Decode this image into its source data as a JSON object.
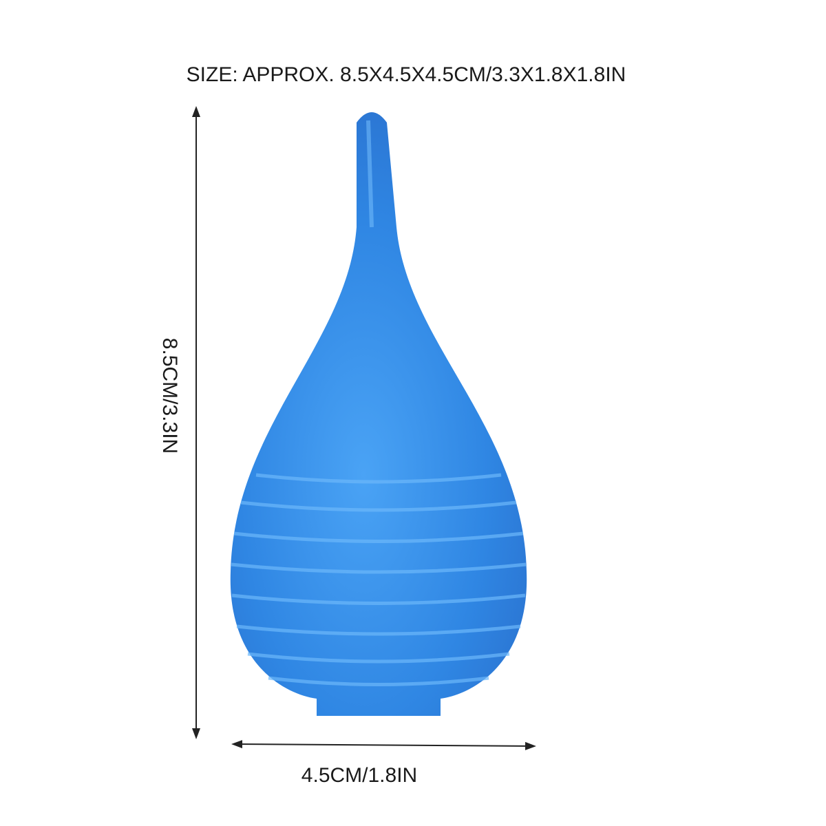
{
  "annotations": {
    "title": "SIZE: APPROX. 8.5X4.5X4.5CM/3.3X1.8X1.8IN",
    "height": "8.5CM/3.3IN",
    "width": "4.5CM/1.8IN"
  }
}
